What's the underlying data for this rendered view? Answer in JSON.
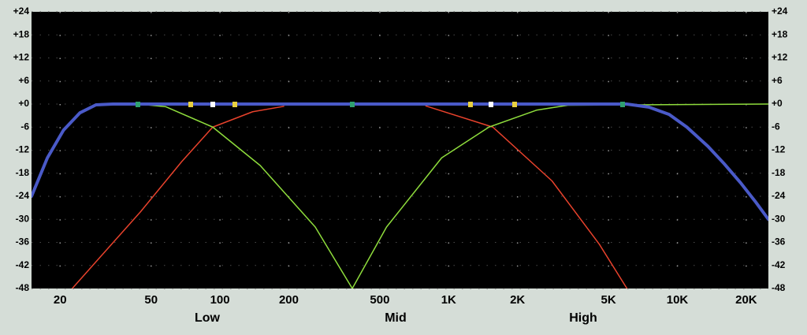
{
  "chart_data": {
    "type": "line",
    "xscale": "log",
    "grid": true,
    "background": "#000000",
    "xlim": [
      15,
      25000
    ],
    "ylim": [
      -48,
      24
    ],
    "xticks": [
      20,
      50,
      100,
      200,
      500,
      {
        "value": 1000,
        "label": "1K"
      },
      {
        "value": 2000,
        "label": "2K"
      },
      {
        "value": 5000,
        "label": "5K"
      },
      {
        "value": 10000,
        "label": "10K"
      },
      {
        "value": 20000,
        "label": "20K"
      }
    ],
    "yticks": [
      {
        "value": 24,
        "label": "+24"
      },
      {
        "value": 18,
        "label": "+18"
      },
      {
        "value": 12,
        "label": "+12"
      },
      {
        "value": 6,
        "label": "+6"
      },
      {
        "value": 0,
        "label": "+0"
      },
      -6,
      -12,
      -18,
      -24,
      -30,
      -36,
      -42,
      -48
    ],
    "annotations": [
      "Low",
      "Mid",
      "High"
    ],
    "series": [
      {
        "color": "#e8422c",
        "width": 1.5,
        "x": [
          22.6,
          45,
          68,
          93,
          139,
          190
        ],
        "values": [
          -48,
          -28,
          -15,
          -6,
          -2,
          -0.6
        ]
      },
      {
        "color": "#e8422c",
        "width": 1.5,
        "x": [
          795,
          1560,
          2830,
          4560,
          6020
        ],
        "values": [
          -0.5,
          -6,
          -20,
          -36.5,
          -48
        ]
      },
      {
        "color": "#8edc3c",
        "width": 1.5,
        "x": [
          44,
          58,
          93,
          150,
          261,
          379,
          535,
          932,
          1500,
          2420,
          3320,
          25000
        ],
        "values": [
          0,
          -0.7,
          -6,
          -16,
          -32,
          -48,
          -32,
          -14,
          -6,
          -1.6,
          -0.3,
          0
        ]
      },
      {
        "color": "#4a5ac8",
        "width": 4,
        "x": [
          15,
          17.6,
          20.7,
          24.4,
          28.7,
          34,
          6000,
          7500,
          9200,
          11000,
          13600,
          16000,
          18900,
          22000,
          25000
        ],
        "values": [
          -24,
          -14,
          -6.8,
          -2.3,
          -0.2,
          0,
          0,
          -0.8,
          -2.7,
          -6,
          -11,
          -15.5,
          -20.5,
          -25.5,
          -30
        ]
      }
    ]
  }
}
